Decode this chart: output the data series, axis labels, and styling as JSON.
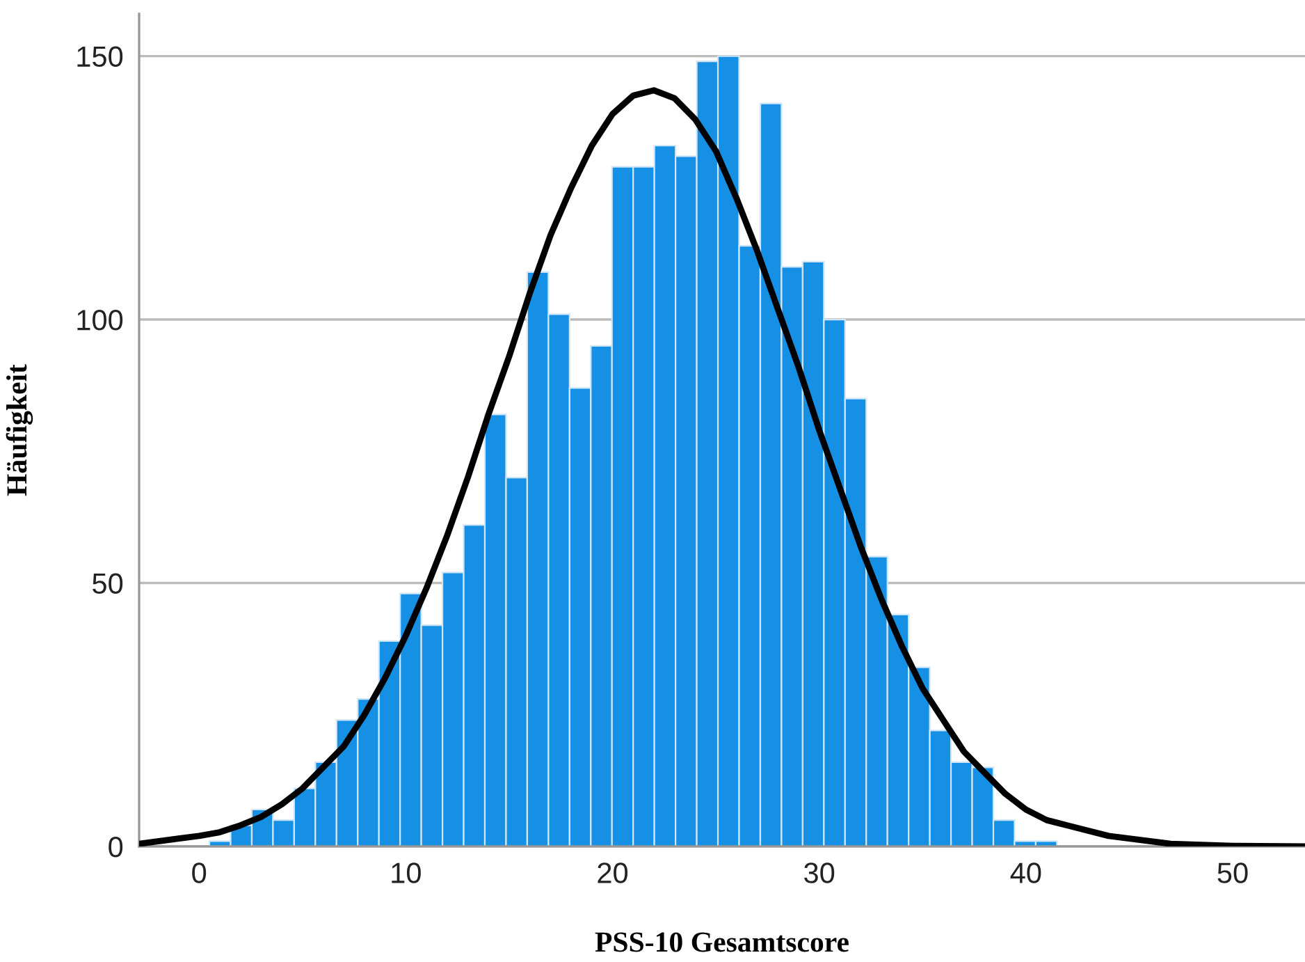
{
  "chart_data": {
    "type": "histogram",
    "xlabel": "PSS-10 Gesamtscore",
    "ylabel": "Häufigkeit",
    "bins": [
      0.5,
      1.525,
      2.55,
      3.575,
      4.6,
      5.625,
      6.65,
      7.675,
      8.7,
      9.725,
      10.75,
      11.775,
      12.8,
      13.825,
      14.85,
      15.875,
      16.9,
      17.925,
      18.95,
      19.975,
      21,
      22.025,
      23.05,
      24.075,
      25.1,
      26.125,
      27.15,
      28.175,
      29.2,
      30.225,
      31.25,
      32.275,
      33.3,
      34.325,
      35.35,
      36.375,
      37.4,
      38.425,
      39.45,
      40.475,
      41.5
    ],
    "values": [
      1,
      4,
      7,
      5,
      11,
      16,
      24,
      28,
      39,
      48,
      42,
      52,
      61,
      82,
      70,
      109,
      101,
      87,
      95,
      129,
      129,
      133,
      131,
      149,
      150,
      114,
      141,
      110,
      111,
      100,
      85,
      55,
      44,
      34,
      22,
      16,
      15,
      5,
      1,
      1
    ],
    "color": "#1590e5",
    "series": [
      {
        "type": "line",
        "color": "#000000",
        "x": [
          -2.9,
          0,
          1,
          2,
          3,
          4,
          5,
          6,
          7,
          8,
          9,
          10,
          11,
          12,
          13,
          14,
          15,
          16,
          17,
          18,
          19,
          20,
          21,
          22,
          23,
          24,
          25,
          26,
          27,
          28,
          29,
          30,
          31,
          32,
          33,
          34,
          35,
          36,
          37,
          38,
          39,
          40,
          41,
          42,
          44,
          47,
          50,
          53.5
        ],
        "values": [
          0.5,
          2,
          2.7,
          4,
          5.6,
          8,
          11,
          15,
          19,
          25,
          32,
          40,
          49,
          59,
          70,
          82,
          93,
          105,
          116,
          125,
          133,
          139,
          142.5,
          143.5,
          142,
          138,
          132,
          123,
          113,
          102,
          91,
          79,
          68,
          57,
          47,
          38,
          30,
          24,
          18,
          14,
          10,
          7,
          5,
          4,
          2,
          0.5,
          0.1,
          0
        ]
      }
    ],
    "xlim": [
      -2.9,
      53.5
    ],
    "ylim": [
      0,
      158
    ],
    "xticks": [
      0,
      10,
      20,
      30,
      40,
      50
    ],
    "yticks": [
      0,
      50,
      100,
      150
    ],
    "grid": "y",
    "legend": false
  }
}
